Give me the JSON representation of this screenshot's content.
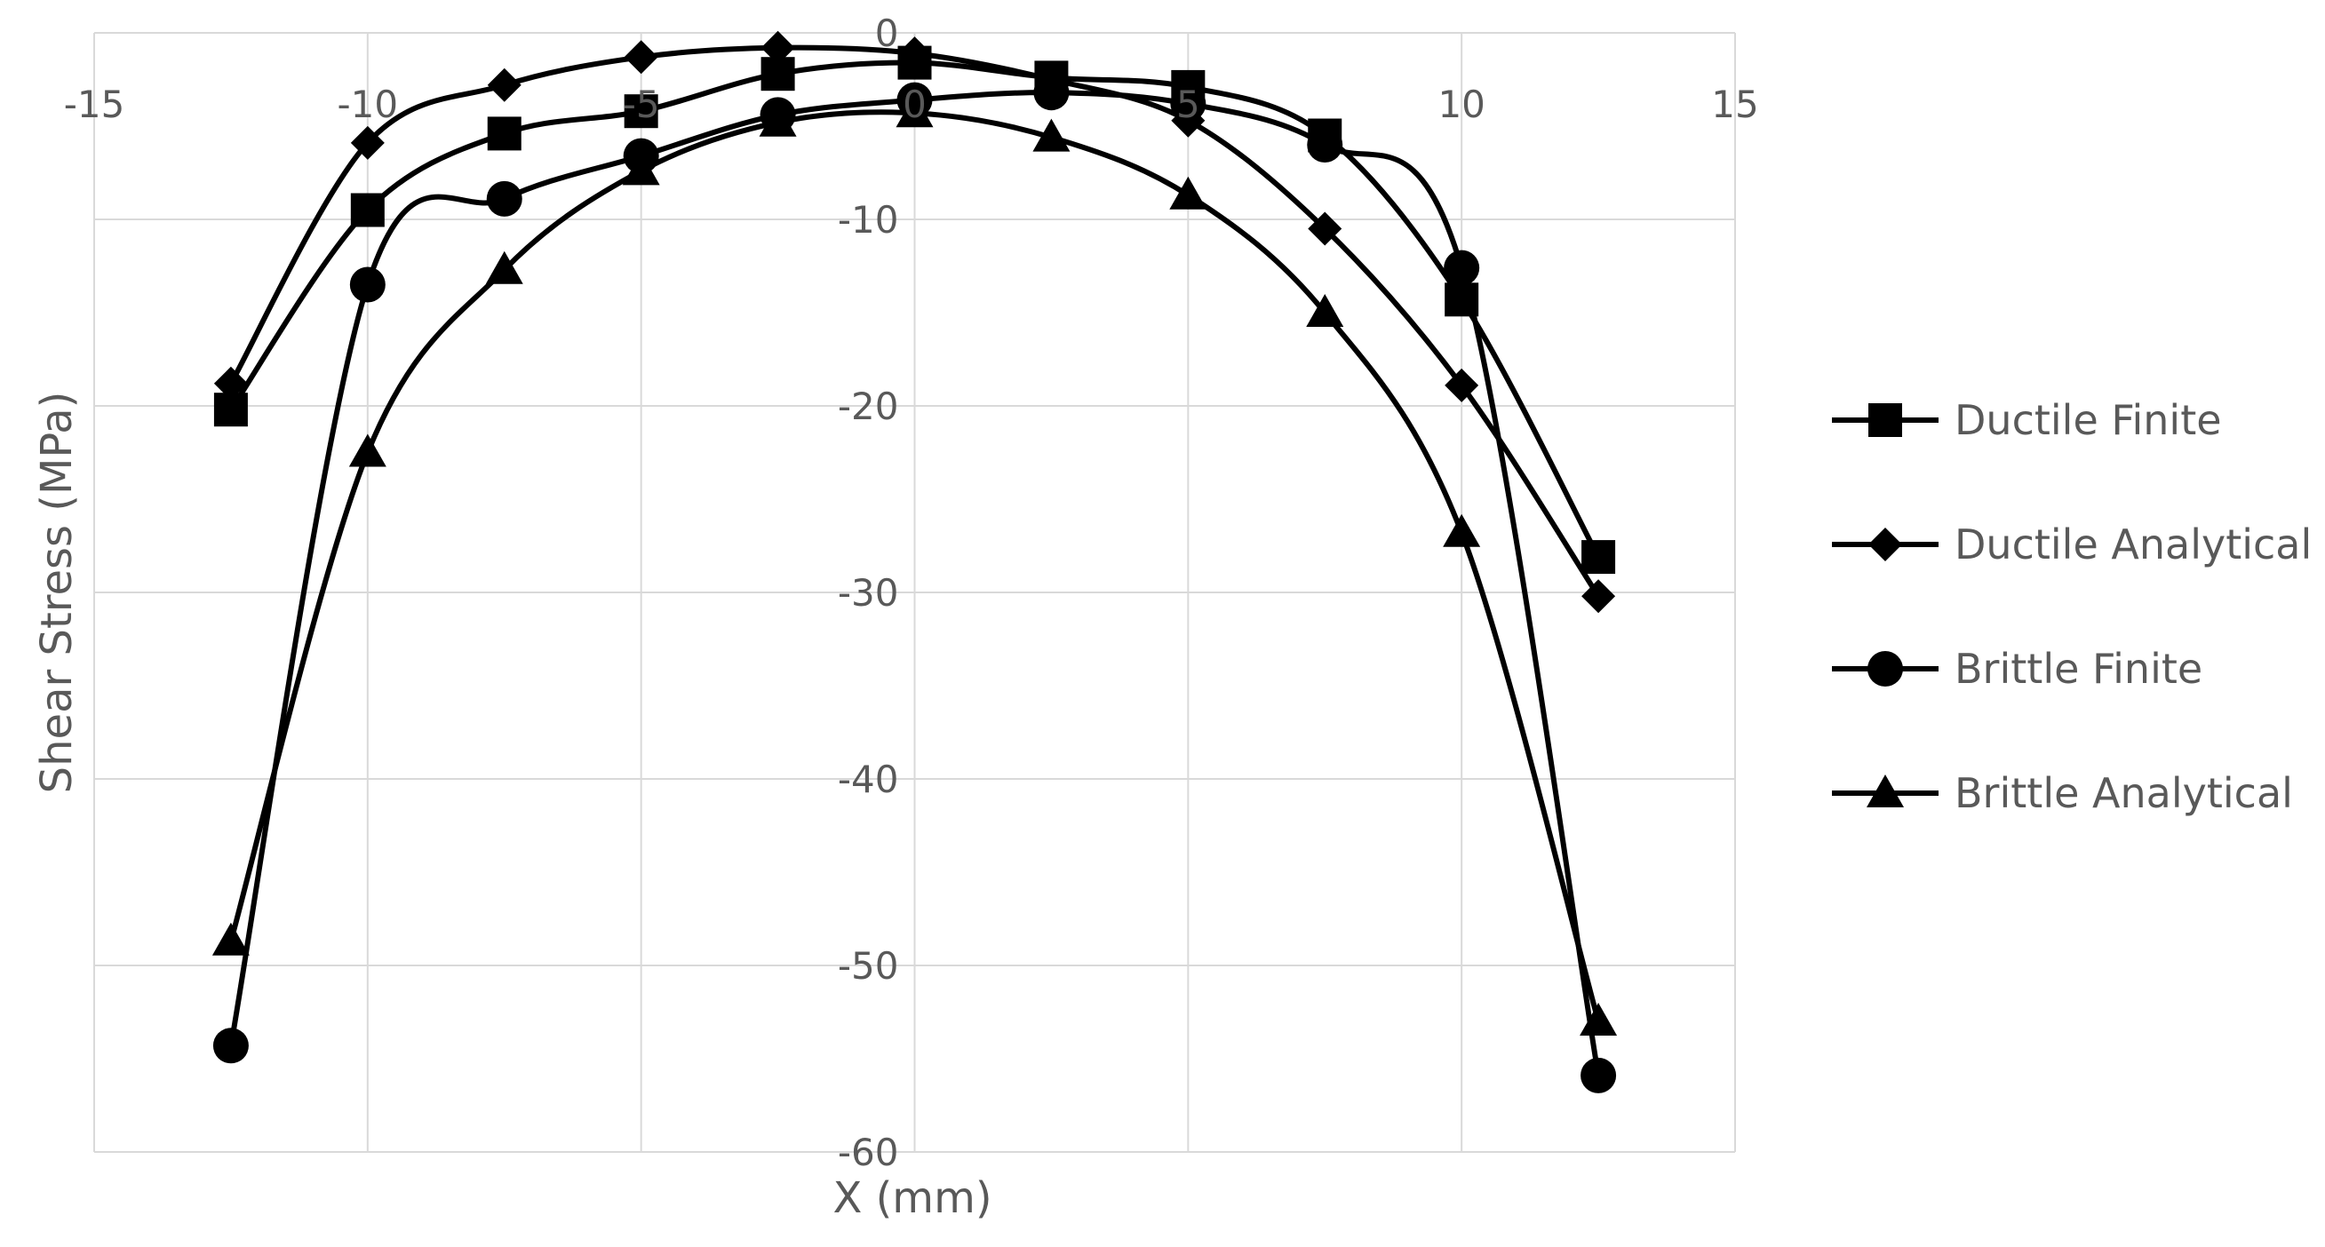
{
  "chart_data": {
    "type": "line",
    "title": "",
    "xlabel": "X (mm)",
    "ylabel": "Shear Stress (MPa)",
    "xlim": [
      -15,
      15
    ],
    "ylim": [
      -60,
      0
    ],
    "x_ticks": [
      -15,
      -10,
      -5,
      0,
      5,
      10,
      15
    ],
    "y_ticks": [
      0,
      -10,
      -20,
      -30,
      -40,
      -50,
      -60
    ],
    "x_tick_labels": [
      "-15",
      "-10",
      "-5",
      "0",
      "5",
      "10",
      "15"
    ],
    "y_tick_labels": [
      "0",
      "-10",
      "-20",
      "-30",
      "-40",
      "-50",
      "-60"
    ],
    "grid": true,
    "smooth": true,
    "legend_position": "right",
    "line_color": "#000000",
    "grid_color": "#d9d9d9",
    "text_color": "#595959",
    "x": [
      -12.5,
      -10,
      -7.5,
      -5,
      -2.5,
      0,
      2.5,
      5,
      7.5,
      10,
      12.5
    ],
    "series": [
      {
        "name": "Ductile Finite",
        "marker": "square",
        "values": [
          -20.2,
          -9.5,
          -5.4,
          -4.2,
          -2.2,
          -1.6,
          -2.4,
          -2.9,
          -5.5,
          -14.3,
          -28.1
        ]
      },
      {
        "name": "Ductile Analytical",
        "marker": "diamond",
        "values": [
          -18.8,
          -5.9,
          -2.8,
          -1.3,
          -0.8,
          -1.1,
          -2.5,
          -4.7,
          -10.5,
          -18.9,
          -30.2
        ]
      },
      {
        "name": "Brittle Finite",
        "marker": "circle",
        "values": [
          -54.3,
          -13.5,
          -8.9,
          -6.6,
          -4.4,
          -3.6,
          -3.2,
          -3.8,
          -6.0,
          -12.6,
          -55.9
        ]
      },
      {
        "name": "Brittle Analytical",
        "marker": "triangle",
        "values": [
          -48.7,
          -22.5,
          -12.7,
          -7.4,
          -4.8,
          -4.3,
          -5.6,
          -8.7,
          -15.0,
          -26.8,
          -53.0
        ]
      }
    ]
  }
}
